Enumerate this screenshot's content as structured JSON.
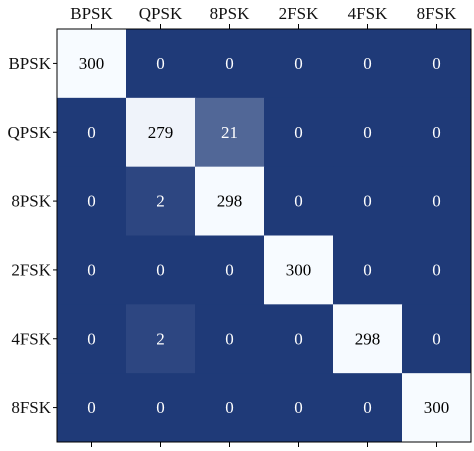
{
  "chart_data": {
    "type": "heatmap",
    "title": "",
    "xlabel": "",
    "ylabel": "",
    "x_categories": [
      "BPSK",
      "QPSK",
      "8PSK",
      "2FSK",
      "4FSK",
      "8FSK"
    ],
    "y_categories": [
      "BPSK",
      "QPSK",
      "8PSK",
      "2FSK",
      "4FSK",
      "8FSK"
    ],
    "values": [
      [
        300,
        0,
        0,
        0,
        0,
        0
      ],
      [
        0,
        279,
        21,
        0,
        0,
        0
      ],
      [
        0,
        2,
        298,
        0,
        0,
        0
      ],
      [
        0,
        0,
        0,
        300,
        0,
        0
      ],
      [
        0,
        2,
        0,
        0,
        298,
        0
      ],
      [
        0,
        0,
        0,
        0,
        0,
        300
      ]
    ],
    "color_scale": {
      "min_value": 0,
      "max_value": 300,
      "low_color": "#1f3a78",
      "high_color": "#f7fbff"
    },
    "colors": {
      "text_on_dark": "#ffffff",
      "text_on_light": "#000000",
      "axis": "#000000"
    },
    "x_tick_position": "top",
    "grid": false,
    "legend": false
  }
}
